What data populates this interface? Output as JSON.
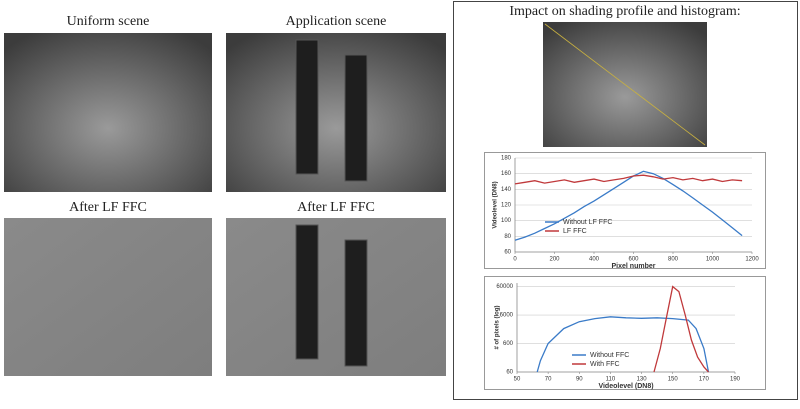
{
  "captions": {
    "uniform": "Uniform scene",
    "application": "Application scene",
    "after_uniform": "After LF FFC",
    "after_application": "After LF FFC",
    "impact": "Impact on shading profile and histogram:"
  },
  "chart_data": [
    {
      "type": "line",
      "x_label": "Pixel number",
      "y_label": "Videolevel (DN8)",
      "x": [
        0,
        50,
        100,
        150,
        200,
        250,
        300,
        350,
        400,
        450,
        500,
        550,
        600,
        650,
        700,
        750,
        800,
        850,
        900,
        950,
        1000,
        1050,
        1100,
        1150
      ],
      "series": [
        {
          "name": "Without LF FFC",
          "color": "#3a7bc8",
          "values": [
            75,
            79,
            84,
            90,
            96,
            103,
            110,
            118,
            125,
            133,
            141,
            149,
            157,
            163,
            160,
            154,
            146,
            138,
            129,
            120,
            111,
            101,
            91,
            81
          ]
        },
        {
          "name": "LF FFC",
          "color": "#c0393b",
          "values": [
            147,
            149,
            151,
            148,
            150,
            152,
            149,
            151,
            153,
            150,
            152,
            154,
            157,
            158,
            156,
            153,
            155,
            152,
            154,
            151,
            153,
            150,
            152,
            151
          ]
        }
      ],
      "xlim": [
        0,
        1200
      ],
      "xticks": [
        0,
        200,
        400,
        600,
        800,
        1000,
        1200
      ],
      "ylim": [
        60,
        180
      ],
      "yticks": [
        60,
        80,
        100,
        120,
        140,
        160,
        180
      ],
      "grid": true,
      "ylog": false
    },
    {
      "type": "line",
      "x_label": "Videolevel (DN8)",
      "y_label": "# of pixels (log)",
      "series": [
        {
          "name": "Without FFC",
          "color": "#3a7bc8",
          "x": [
            63,
            65,
            70,
            80,
            90,
            100,
            110,
            120,
            130,
            140,
            150,
            160,
            165,
            170,
            173
          ],
          "values": [
            60,
            150,
            600,
            2000,
            3500,
            4500,
            5200,
            4800,
            4600,
            4800,
            4500,
            4000,
            2000,
            400,
            60
          ]
        },
        {
          "name": "With FFC",
          "color": "#c0393b",
          "x": [
            138,
            142,
            146,
            150,
            154,
            158,
            162,
            166,
            170,
            173
          ],
          "values": [
            60,
            400,
            5000,
            60000,
            40000,
            6000,
            800,
            200,
            90,
            60
          ]
        }
      ],
      "xlim": [
        50,
        190
      ],
      "xticks": [
        50,
        70,
        90,
        110,
        130,
        150,
        170,
        190
      ],
      "ylim": [
        60,
        80000
      ],
      "yticks": [
        60,
        600,
        6000,
        60000
      ],
      "grid": true,
      "ylog": true
    }
  ]
}
